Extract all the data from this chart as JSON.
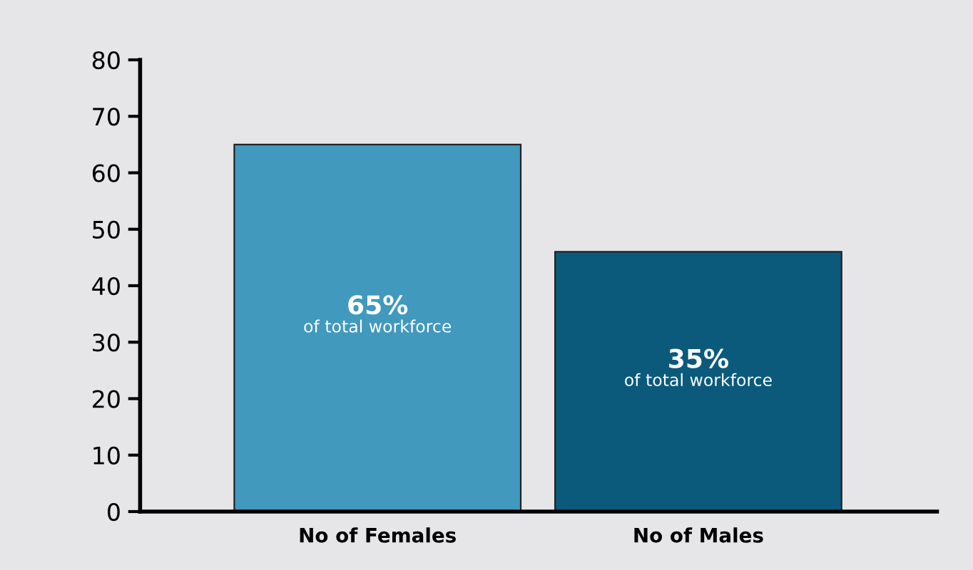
{
  "chart_data": {
    "type": "bar",
    "categories": [
      "No of Females",
      "No of Males"
    ],
    "values": [
      65,
      46
    ],
    "colors": [
      "#4199bd",
      "#0b5a7c"
    ],
    "annotations": [
      "65%\nof total workforce",
      "35%\nof total workforce"
    ],
    "ylim": [
      0,
      80
    ],
    "yticks": [
      0,
      10,
      20,
      30,
      40,
      50,
      60,
      70,
      80
    ],
    "grid": false
  }
}
